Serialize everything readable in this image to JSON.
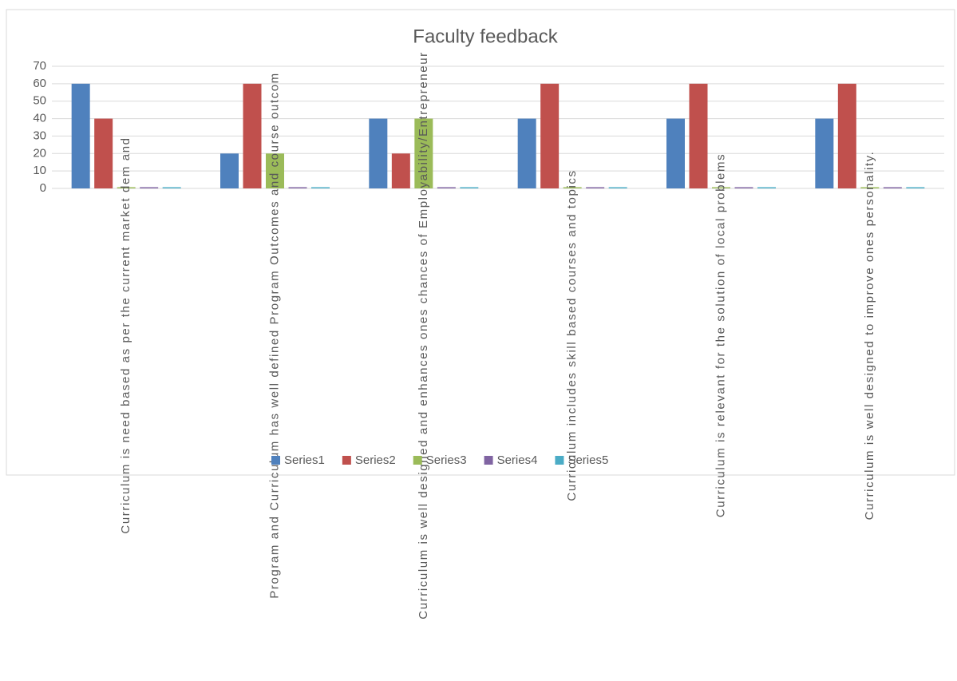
{
  "chart_data": {
    "type": "bar",
    "title": "Faculty feedback",
    "categories": [
      "Curriculum is need based as per the current market dem and",
      "Program and Curriculum has well defined Program Outcomes and course outcom",
      "Curriculum is well designed and enhances ones chances of Employability/Entrepreneur",
      "Curriculum includes skill based courses and topics",
      "Curriculum is relevant for the solution of local problems",
      "Curriculum is well designed to improve ones personality."
    ],
    "series": [
      {
        "name": "Series1",
        "color": "#4f81bd",
        "values": [
          60,
          20,
          40,
          40,
          40,
          40
        ]
      },
      {
        "name": "Series2",
        "color": "#c0504d",
        "values": [
          40,
          60,
          20,
          60,
          60,
          60
        ]
      },
      {
        "name": "Series3",
        "color": "#9bbb59",
        "values": [
          0,
          20,
          40,
          0,
          0,
          0
        ]
      },
      {
        "name": "Series4",
        "color": "#8064a2",
        "values": [
          0,
          0,
          0,
          0,
          0,
          0
        ]
      },
      {
        "name": "Series5",
        "color": "#4bacc6",
        "values": [
          0,
          0,
          0,
          0,
          0,
          0
        ]
      }
    ],
    "ylim": [
      0,
      70
    ],
    "yticks": [
      0,
      10,
      20,
      30,
      40,
      50,
      60,
      70
    ],
    "grid": true,
    "legend": "bottom"
  }
}
